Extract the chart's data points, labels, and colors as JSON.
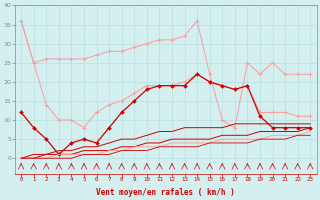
{
  "x": [
    0,
    1,
    2,
    3,
    4,
    5,
    6,
    7,
    8,
    9,
    10,
    11,
    12,
    13,
    14,
    15,
    16,
    17,
    18,
    19,
    20,
    21,
    22,
    23
  ],
  "line_gust_upper": [
    36,
    25,
    26,
    26,
    26,
    26,
    27,
    28,
    28,
    29,
    30,
    31,
    31,
    32,
    36,
    22,
    10,
    8,
    25,
    22,
    25,
    22,
    22,
    22
  ],
  "line_gust_lower": [
    36,
    25,
    14,
    10,
    10,
    8,
    12,
    14,
    15,
    17,
    19,
    19,
    19,
    20,
    22,
    20,
    19,
    18,
    19,
    12,
    12,
    12,
    11,
    11
  ],
  "line_mean": [
    12,
    8,
    5,
    1,
    4,
    5,
    4,
    8,
    12,
    15,
    18,
    19,
    19,
    19,
    22,
    20,
    19,
    18,
    19,
    11,
    8,
    8,
    8,
    8
  ],
  "line_reg1": [
    0,
    1,
    1,
    2,
    2,
    3,
    3,
    4,
    5,
    5,
    6,
    7,
    7,
    8,
    8,
    8,
    8,
    9,
    9,
    9,
    9,
    9,
    9,
    9
  ],
  "line_reg2": [
    0,
    0,
    1,
    1,
    1,
    2,
    2,
    2,
    3,
    3,
    4,
    4,
    5,
    5,
    5,
    5,
    6,
    6,
    6,
    7,
    7,
    7,
    7,
    8
  ],
  "line_reg3": [
    0,
    0,
    0,
    1,
    1,
    1,
    1,
    2,
    2,
    3,
    3,
    3,
    4,
    4,
    4,
    4,
    5,
    5,
    5,
    5,
    6,
    6,
    6,
    7
  ],
  "line_reg4": [
    0,
    0,
    0,
    0,
    0,
    1,
    1,
    1,
    2,
    2,
    2,
    3,
    3,
    3,
    3,
    4,
    4,
    4,
    4,
    5,
    5,
    5,
    6,
    6
  ],
  "ylim": [
    -4,
    40
  ],
  "yticks": [
    0,
    5,
    10,
    15,
    20,
    25,
    30,
    35,
    40
  ],
  "xticks": [
    0,
    1,
    2,
    3,
    4,
    5,
    6,
    7,
    8,
    9,
    10,
    11,
    12,
    13,
    14,
    15,
    16,
    17,
    18,
    19,
    20,
    21,
    22,
    23
  ],
  "xlabel": "Vent moyen/en rafales ( km/h )",
  "bg_color": "#d4efef",
  "grid_color": "#b8dede",
  "color_light": "#ff9999",
  "color_dark": "#cc0000"
}
